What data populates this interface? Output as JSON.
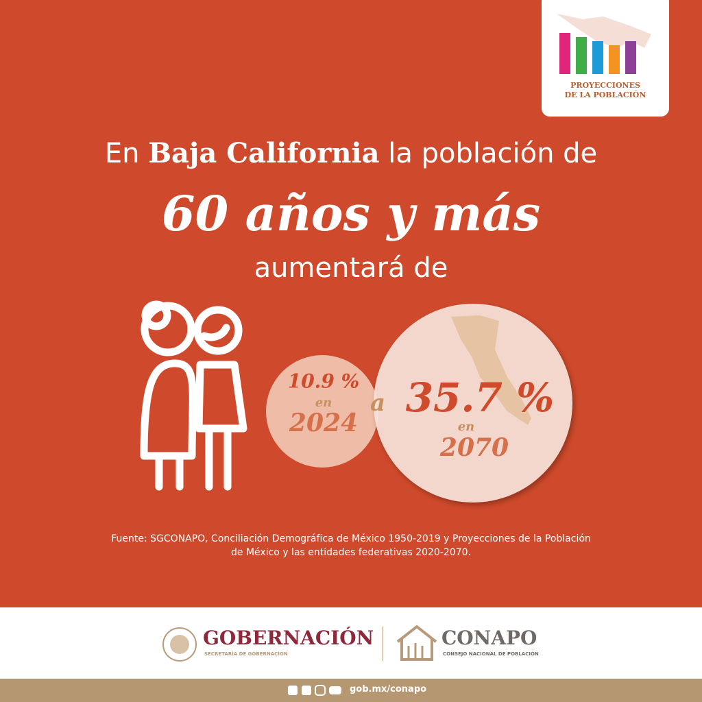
{
  "logo": {
    "line1": "PROYECCIONES",
    "line2": "DE LA POBLACIÓN"
  },
  "headline": {
    "lead": "En",
    "state": "Baja California",
    "tail": "la población de",
    "group": "60 años y más",
    "verb": "aumentará de"
  },
  "from": {
    "value": "10.9 %",
    "in": "en",
    "year": "2024"
  },
  "connector": "a",
  "to": {
    "value": "35.7 %",
    "in": "en",
    "year": "2070"
  },
  "source": {
    "line1": "Fuente: SGCONAPO, Conciliación Demográfica de México 1950-2019 y Proyecciones de la Población",
    "line2": "de México y las entidades federativas 2020-2070."
  },
  "footer": {
    "gob": "GOBERNACIÓN",
    "gob_sub": "SECRETARÍA DE GOBERNACIÓN",
    "conapo": "CONAPO",
    "conapo_sub": "CONSEJO NACIONAL DE POBLACIÓN",
    "url": "gob.mx/conapo"
  }
}
